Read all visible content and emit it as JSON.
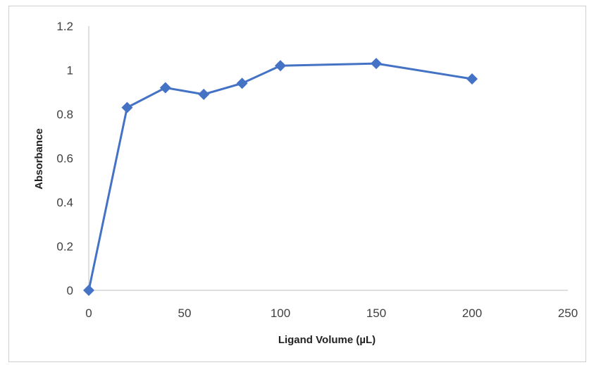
{
  "chart_data": {
    "type": "line",
    "title": "",
    "xlabel": "Ligand Volume (µL)",
    "ylabel": "Absorbance",
    "xlim": [
      0,
      250
    ],
    "ylim": [
      0,
      1.2
    ],
    "x_ticks": [
      "0",
      "50",
      "100",
      "150",
      "200",
      "250"
    ],
    "y_ticks": [
      "0",
      "0.2",
      "0.4",
      "0.6",
      "0.8",
      "1",
      "1.2"
    ],
    "grid": false,
    "legend": "none",
    "marker": "diamond",
    "color": "#4472C4",
    "series": [
      {
        "x": [
          0,
          20,
          40,
          60,
          80,
          100,
          150,
          200
        ],
        "y": [
          0.0,
          0.83,
          0.92,
          0.89,
          0.94,
          1.02,
          1.03,
          0.96
        ]
      }
    ]
  }
}
